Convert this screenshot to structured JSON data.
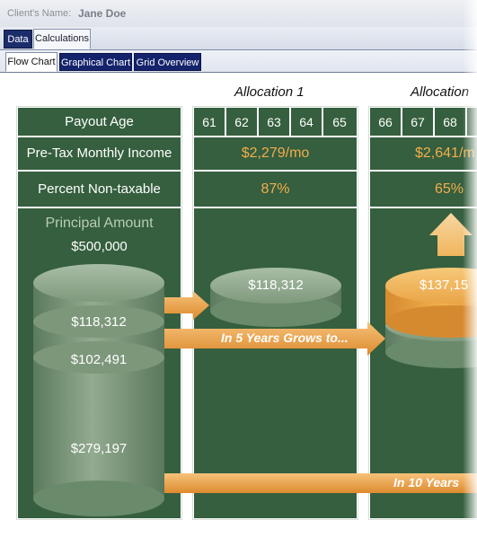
{
  "header": {
    "client_label": "Client's Name:",
    "client_name": "Jane Doe"
  },
  "tabs_main": [
    {
      "label": "Data"
    },
    {
      "label": "Calculations"
    }
  ],
  "tabs_sub": [
    {
      "label": "Flow Chart"
    },
    {
      "label": "Graphical Chart"
    },
    {
      "label": "Grid Overview"
    }
  ],
  "left_panel": {
    "payout_age_label": "Payout Age",
    "pretax_label": "Pre-Tax Monthly Income",
    "nontax_label": "Percent Non-taxable",
    "principal_label": "Principal Amount",
    "principal_value": "$500,000",
    "cylinder_values": [
      "$118,312",
      "$102,491",
      "$279,197"
    ]
  },
  "allocations": [
    {
      "title": "Allocation 1",
      "ages": [
        "61",
        "62",
        "63",
        "64",
        "65"
      ],
      "income": "$2,279/mo",
      "nontax": "87%",
      "cylinder_value": "$118,312"
    },
    {
      "title": "Allocation",
      "ages": [
        "66",
        "67",
        "68"
      ],
      "income": "$2,641/m",
      "nontax": "65%",
      "cylinder_value": "$137,15"
    }
  ],
  "arrows": {
    "grows_5": "In 5 Years Grows to...",
    "grows_10": "In 10 Years"
  },
  "colors": {
    "panel_green": "#355f3e",
    "gold": "#f2ad4b",
    "tab_navy": "#14236b"
  }
}
